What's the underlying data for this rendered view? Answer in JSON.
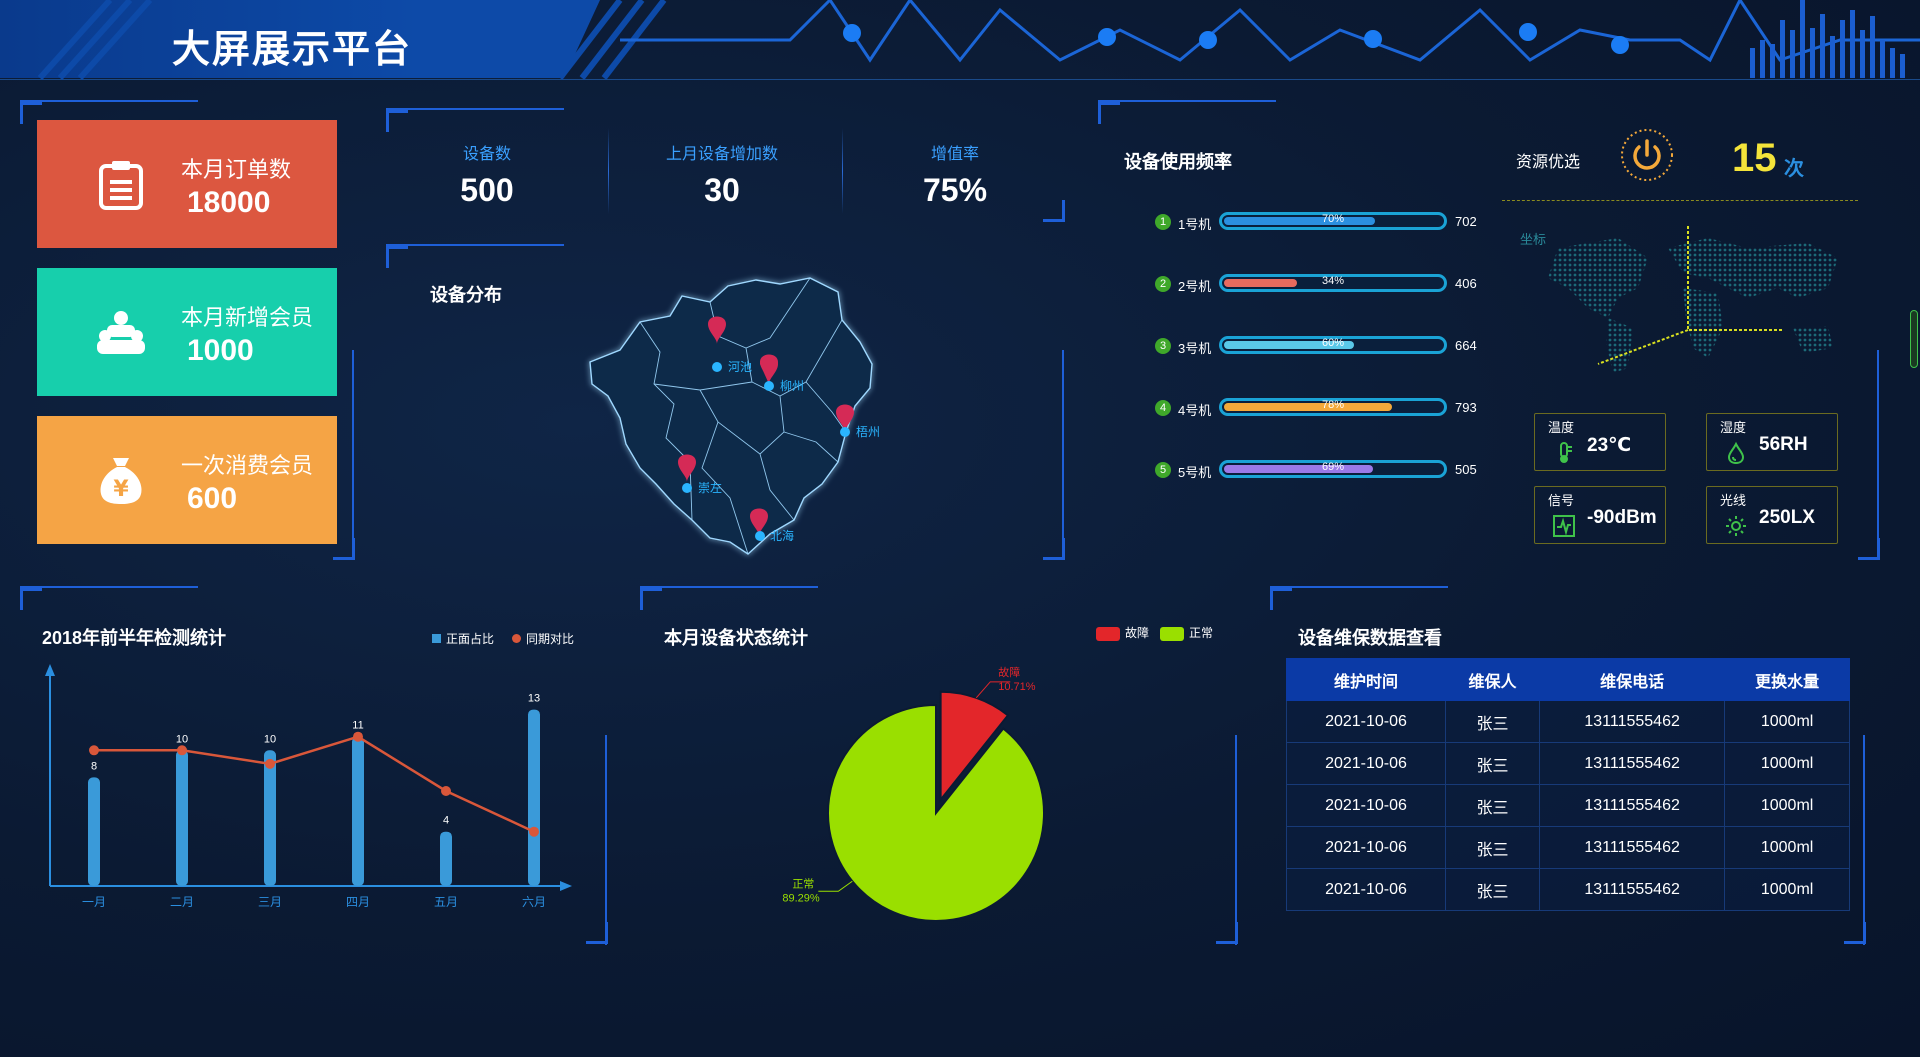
{
  "header": {
    "title": "大屏展示平台"
  },
  "kpis": [
    {
      "label": "本月订单数",
      "value": "18000",
      "color": "#dc5740",
      "icon": "clipboard-icon"
    },
    {
      "label": "本月新增会员",
      "value": "1000",
      "color": "#17cfac",
      "icon": "members-icon"
    },
    {
      "label": "一次消费会员",
      "value": "600",
      "color": "#f5a445",
      "icon": "money-bag-icon"
    }
  ],
  "stats": [
    {
      "label": "设备数",
      "value": "500"
    },
    {
      "label": "上月设备增加数",
      "value": "30"
    },
    {
      "label": "增值率",
      "value": "75%"
    }
  ],
  "map": {
    "title": "设备分布",
    "cities": [
      "河池",
      "柳州",
      "梧州",
      "崇左",
      "北海"
    ]
  },
  "usage": {
    "title": "设备使用频率",
    "items": [
      {
        "rank": "1",
        "name": "1号机",
        "pct": 70,
        "pct_label": "70%",
        "count": "702",
        "color": "#2b8fe0"
      },
      {
        "rank": "2",
        "name": "2号机",
        "pct": 34,
        "pct_label": "34%",
        "count": "406",
        "color": "#e86a5e"
      },
      {
        "rank": "3",
        "name": "3号机",
        "pct": 60,
        "pct_label": "60%",
        "count": "664",
        "color": "#5ac8e8"
      },
      {
        "rank": "4",
        "name": "4号机",
        "pct": 78,
        "pct_label": "78%",
        "count": "793",
        "color": "#f4a93a"
      },
      {
        "rank": "5",
        "name": "5号机",
        "pct": 69,
        "pct_label": "69%",
        "count": "505",
        "color": "#9b7ae8"
      }
    ]
  },
  "resource": {
    "label": "资源优选",
    "value": "15",
    "unit": "次",
    "accent": "#f4e43a"
  },
  "world": {
    "label": "坐标"
  },
  "sensors": [
    {
      "name": "温度",
      "value": "23℃",
      "icon": "thermometer-icon"
    },
    {
      "name": "湿度",
      "value": "56RH",
      "icon": "droplet-icon"
    },
    {
      "name": "信号",
      "value": "-90dBm",
      "icon": "signal-icon"
    },
    {
      "name": "光线",
      "value": "250LX",
      "icon": "sun-icon"
    }
  ],
  "chart_data": [
    {
      "type": "bar",
      "title": "2018年前半年检测统计",
      "categories": [
        "一月",
        "二月",
        "三月",
        "四月",
        "五月",
        "六月"
      ],
      "series": [
        {
          "name": "正面占比",
          "type": "bar",
          "values": [
            8,
            10,
            10,
            11,
            4,
            13
          ],
          "color": "#3a9ad9"
        },
        {
          "name": "同期对比",
          "type": "line",
          "values": [
            10,
            10,
            9,
            11,
            7,
            4
          ],
          "color": "#d9573a"
        }
      ],
      "ylim": [
        0,
        14
      ],
      "legend": "top-right"
    },
    {
      "type": "pie",
      "title": "本月设备状态统计",
      "labels": [
        "故障",
        "正常"
      ],
      "values": [
        10.71,
        89.29
      ],
      "value_labels": [
        "10.71%",
        "89.29%"
      ],
      "colors": [
        "#e3262a",
        "#9adf00"
      ],
      "legend": "top-right"
    }
  ],
  "maintenance": {
    "title": "设备维保数据查看",
    "columns": [
      "维护时间",
      "维保人",
      "维保电话",
      "更换水量"
    ],
    "rows": [
      [
        "2021-10-06",
        "张三",
        "13111555462",
        "1000ml"
      ],
      [
        "2021-10-06",
        "张三",
        "13111555462",
        "1000ml"
      ],
      [
        "2021-10-06",
        "张三",
        "13111555462",
        "1000ml"
      ],
      [
        "2021-10-06",
        "张三",
        "13111555462",
        "1000ml"
      ],
      [
        "2021-10-06",
        "张三",
        "13111555462",
        "1000ml"
      ]
    ]
  }
}
